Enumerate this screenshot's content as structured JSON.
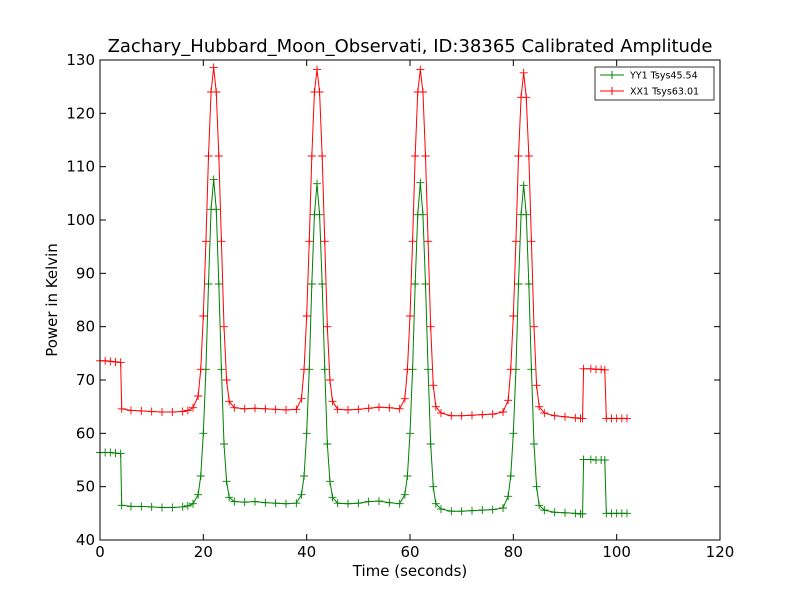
{
  "chart_data": {
    "type": "line",
    "title": "Zachary_Hubbard_Moon_Observati, ID:38365 Calibrated Amplitude",
    "xlabel": "Time (seconds)",
    "ylabel": "Power in Kelvin",
    "xlim": [
      0,
      120
    ],
    "ylim": [
      40,
      130
    ],
    "xticks": [
      "0",
      "20",
      "40",
      "60",
      "80",
      "100",
      "120"
    ],
    "yticks": [
      "40",
      "50",
      "60",
      "70",
      "80",
      "90",
      "100",
      "110",
      "120",
      "130"
    ],
    "grid": false,
    "legend_position": "top-right",
    "marker": "+",
    "series": [
      {
        "name": "YY1 Tsys45.54",
        "color": "#008000",
        "points": [
          [
            0,
            56.4
          ],
          [
            1,
            56.4
          ],
          [
            2,
            56.4
          ],
          [
            3,
            56.3
          ],
          [
            4,
            56.2
          ],
          [
            4.2,
            46.5
          ],
          [
            6,
            46.3
          ],
          [
            8,
            46.3
          ],
          [
            10,
            46.2
          ],
          [
            12,
            46.1
          ],
          [
            14,
            46.1
          ],
          [
            16,
            46.2
          ],
          [
            17,
            46.4
          ],
          [
            18,
            46.8
          ],
          [
            19,
            48.5
          ],
          [
            19.5,
            52
          ],
          [
            20,
            60
          ],
          [
            20.5,
            72
          ],
          [
            21,
            88
          ],
          [
            21.5,
            102
          ],
          [
            22,
            107.6
          ],
          [
            22.5,
            102
          ],
          [
            23,
            88
          ],
          [
            23.5,
            72
          ],
          [
            24,
            58
          ],
          [
            24.5,
            51
          ],
          [
            25,
            48
          ],
          [
            26,
            47.2
          ],
          [
            28,
            47.1
          ],
          [
            30,
            47.2
          ],
          [
            32,
            47.0
          ],
          [
            34,
            46.9
          ],
          [
            36,
            46.8
          ],
          [
            38,
            46.9
          ],
          [
            39,
            48.5
          ],
          [
            39.5,
            52
          ],
          [
            40,
            60
          ],
          [
            40.5,
            72
          ],
          [
            41,
            88
          ],
          [
            41.5,
            101
          ],
          [
            42,
            106.8
          ],
          [
            42.5,
            101
          ],
          [
            43,
            88
          ],
          [
            43.5,
            72
          ],
          [
            44,
            58
          ],
          [
            44.5,
            51
          ],
          [
            45,
            48
          ],
          [
            46,
            46.9
          ],
          [
            48,
            46.8
          ],
          [
            50,
            46.9
          ],
          [
            52,
            47.2
          ],
          [
            54,
            47.3
          ],
          [
            56,
            47.0
          ],
          [
            58,
            46.8
          ],
          [
            59,
            48.5
          ],
          [
            59.5,
            52
          ],
          [
            60,
            60
          ],
          [
            60.5,
            72
          ],
          [
            61,
            88
          ],
          [
            61.5,
            101
          ],
          [
            62,
            107.0
          ],
          [
            62.5,
            101
          ],
          [
            63,
            88
          ],
          [
            63.5,
            72
          ],
          [
            64,
            58
          ],
          [
            64.5,
            50
          ],
          [
            65,
            46.8
          ],
          [
            66,
            45.8
          ],
          [
            68,
            45.4
          ],
          [
            70,
            45.4
          ],
          [
            72,
            45.5
          ],
          [
            74,
            45.6
          ],
          [
            76,
            45.7
          ],
          [
            78,
            46.0
          ],
          [
            79,
            48.2
          ],
          [
            79.5,
            52
          ],
          [
            80,
            60
          ],
          [
            80.5,
            72
          ],
          [
            81,
            88
          ],
          [
            81.5,
            101
          ],
          [
            82,
            106.5
          ],
          [
            82.5,
            101
          ],
          [
            83,
            88
          ],
          [
            83.5,
            72
          ],
          [
            84,
            58
          ],
          [
            84.5,
            50
          ],
          [
            85,
            46.5
          ],
          [
            86,
            45.6
          ],
          [
            88,
            45.2
          ],
          [
            90,
            45.1
          ],
          [
            92,
            45.0
          ],
          [
            93,
            44.9
          ],
          [
            93.4,
            44.9
          ],
          [
            93.6,
            55.1
          ],
          [
            95,
            55.1
          ],
          [
            96,
            55.0
          ],
          [
            97,
            55.0
          ],
          [
            97.7,
            55.0
          ],
          [
            98,
            45.0
          ],
          [
            99,
            45.0
          ],
          [
            100,
            45.0
          ],
          [
            101,
            45.0
          ],
          [
            102,
            45.0
          ]
        ]
      },
      {
        "name": "XX1 Tsys63.01",
        "color": "#ff0000",
        "points": [
          [
            0,
            73.6
          ],
          [
            1,
            73.6
          ],
          [
            2,
            73.5
          ],
          [
            3,
            73.4
          ],
          [
            4,
            73.3
          ],
          [
            4.2,
            64.6
          ],
          [
            6,
            64.3
          ],
          [
            8,
            64.2
          ],
          [
            10,
            64.1
          ],
          [
            12,
            64.0
          ],
          [
            14,
            64.0
          ],
          [
            16,
            64.1
          ],
          [
            17,
            64.3
          ],
          [
            18,
            64.8
          ],
          [
            19,
            67
          ],
          [
            19.5,
            72
          ],
          [
            20,
            82
          ],
          [
            20.5,
            96
          ],
          [
            21,
            112
          ],
          [
            21.5,
            124
          ],
          [
            22,
            128.6
          ],
          [
            22.5,
            124
          ],
          [
            23,
            112
          ],
          [
            23.5,
            96
          ],
          [
            24,
            80
          ],
          [
            24.5,
            70
          ],
          [
            25,
            66
          ],
          [
            26,
            64.8
          ],
          [
            28,
            64.6
          ],
          [
            30,
            64.7
          ],
          [
            32,
            64.6
          ],
          [
            34,
            64.5
          ],
          [
            36,
            64.4
          ],
          [
            38,
            64.5
          ],
          [
            39,
            66.5
          ],
          [
            39.5,
            72
          ],
          [
            40,
            82
          ],
          [
            40.5,
            96
          ],
          [
            41,
            112
          ],
          [
            41.5,
            124
          ],
          [
            42,
            128.2
          ],
          [
            42.5,
            124
          ],
          [
            43,
            112
          ],
          [
            43.5,
            96
          ],
          [
            44,
            80
          ],
          [
            44.5,
            70
          ],
          [
            45,
            66
          ],
          [
            46,
            64.5
          ],
          [
            48,
            64.4
          ],
          [
            50,
            64.5
          ],
          [
            52,
            64.7
          ],
          [
            54,
            64.9
          ],
          [
            56,
            64.8
          ],
          [
            58,
            64.6
          ],
          [
            59,
            66.5
          ],
          [
            59.5,
            72
          ],
          [
            60,
            82
          ],
          [
            60.5,
            96
          ],
          [
            61,
            112
          ],
          [
            61.5,
            124
          ],
          [
            62,
            128.2
          ],
          [
            62.5,
            124
          ],
          [
            63,
            112
          ],
          [
            63.5,
            96
          ],
          [
            64,
            80
          ],
          [
            64.5,
            69
          ],
          [
            65,
            65
          ],
          [
            66,
            63.8
          ],
          [
            68,
            63.3
          ],
          [
            70,
            63.3
          ],
          [
            72,
            63.4
          ],
          [
            74,
            63.5
          ],
          [
            76,
            63.6
          ],
          [
            78,
            64.0
          ],
          [
            79,
            66.2
          ],
          [
            79.5,
            72
          ],
          [
            80,
            82
          ],
          [
            80.5,
            96
          ],
          [
            81,
            112
          ],
          [
            81.5,
            123
          ],
          [
            82,
            127.6
          ],
          [
            82.5,
            123
          ],
          [
            83,
            112
          ],
          [
            83.5,
            96
          ],
          [
            84,
            80
          ],
          [
            84.5,
            69
          ],
          [
            85,
            65
          ],
          [
            86,
            63.8
          ],
          [
            88,
            63.3
          ],
          [
            90,
            63.1
          ],
          [
            92,
            62.9
          ],
          [
            93,
            62.8
          ],
          [
            93.4,
            62.8
          ],
          [
            93.6,
            72.1
          ],
          [
            95,
            72.1
          ],
          [
            96,
            72.0
          ],
          [
            97,
            72.0
          ],
          [
            97.7,
            71.9
          ],
          [
            98,
            62.8
          ],
          [
            99,
            62.8
          ],
          [
            100,
            62.8
          ],
          [
            101,
            62.8
          ],
          [
            102,
            62.8
          ]
        ]
      }
    ]
  }
}
